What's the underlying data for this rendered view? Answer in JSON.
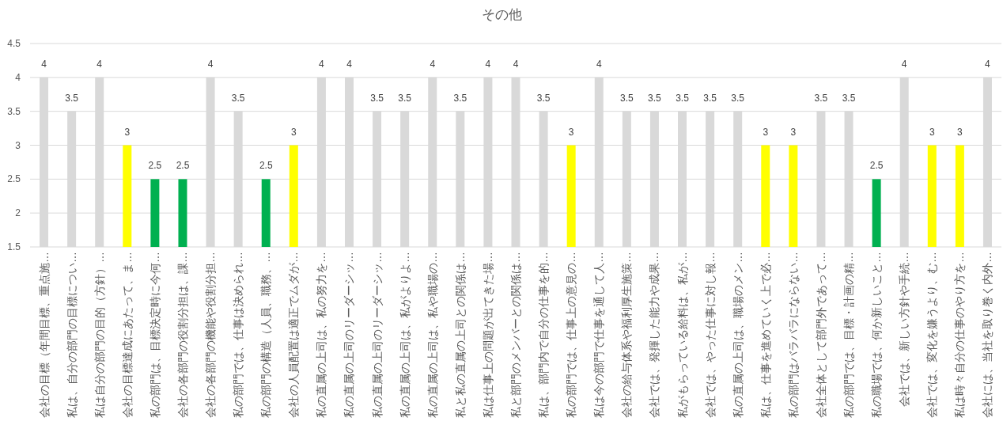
{
  "chart_data": {
    "type": "bar",
    "title": "その他",
    "categories": [
      "会社の目標（年間目標、重点施…",
      "私は、自分の部門の目標につい…",
      "私は自分の部門の目的（方針）…",
      "会社の目標達成にあたって、ま…",
      "私の部門は、目標決定時に今何…",
      "会社の各部門の役割分担は、課…",
      "会社の各部門の機能や役割分担…",
      "私の部門では、仕事は決められ…",
      "私の部門の構造（人員、職務、…",
      "会社の人員配置は適正でムダが…",
      "私の直属の上司は、私の努力を…",
      "私の直属の上司のリーダーシッ…",
      "私の直属の上司のリーダーシッ…",
      "私の直属の上司は、私がよりよ…",
      "私の直属の上司は、私や職場の…",
      "私と私の直属の上司との関係は…",
      "私は仕事上の問題が出てきた場…",
      "私と部門のメンバーとの関係は…",
      "私は、部門内で自分の仕事を的…",
      "私の部門では、仕事上の意見の…",
      "私は今の部門で仕事を通して人…",
      "会社の給与体系や福利厚生施策…",
      "会社では、発揮した能力や成果…",
      "私がもらっている給料は、私が…",
      "会社では、やった仕事に対し報…",
      "私の直属の上司は、職場のメン…",
      "私は、仕事を進めていく上で必…",
      "私の部門はバラバラにならない…",
      "会社全体として部門外であって…",
      "私の部門では、目標・計画の精…",
      "私の職場では、何か新しいこと…",
      "会社では、新しい方針や手続…",
      "会社では、変化を嫌うより、む…",
      "私は時々自分の仕事のやり方を…",
      "会社には、当社を取り巻く内外…"
    ],
    "values": [
      4,
      3.5,
      4,
      3,
      2.5,
      2.5,
      4,
      3.5,
      2.5,
      3,
      4,
      4,
      3.5,
      3.5,
      4,
      3.5,
      4,
      4,
      3.5,
      3,
      4,
      3.5,
      3.5,
      3.5,
      3.5,
      3.5,
      3,
      3,
      3.5,
      3.5,
      2.5,
      4,
      3,
      3,
      4
    ],
    "colors": [
      "#d9d9d9",
      "#d9d9d9",
      "#d9d9d9",
      "#ffff00",
      "#00b050",
      "#00b050",
      "#d9d9d9",
      "#d9d9d9",
      "#00b050",
      "#ffff00",
      "#d9d9d9",
      "#d9d9d9",
      "#d9d9d9",
      "#d9d9d9",
      "#d9d9d9",
      "#d9d9d9",
      "#d9d9d9",
      "#d9d9d9",
      "#d9d9d9",
      "#ffff00",
      "#d9d9d9",
      "#d9d9d9",
      "#d9d9d9",
      "#d9d9d9",
      "#d9d9d9",
      "#d9d9d9",
      "#ffff00",
      "#ffff00",
      "#d9d9d9",
      "#d9d9d9",
      "#00b050",
      "#d9d9d9",
      "#ffff00",
      "#ffff00",
      "#d9d9d9"
    ],
    "ylim": [
      1.5,
      4.5
    ],
    "yticks": [
      1.5,
      2,
      2.5,
      3,
      3.5,
      4,
      4.5
    ],
    "grid": "y",
    "data_labels": true
  }
}
